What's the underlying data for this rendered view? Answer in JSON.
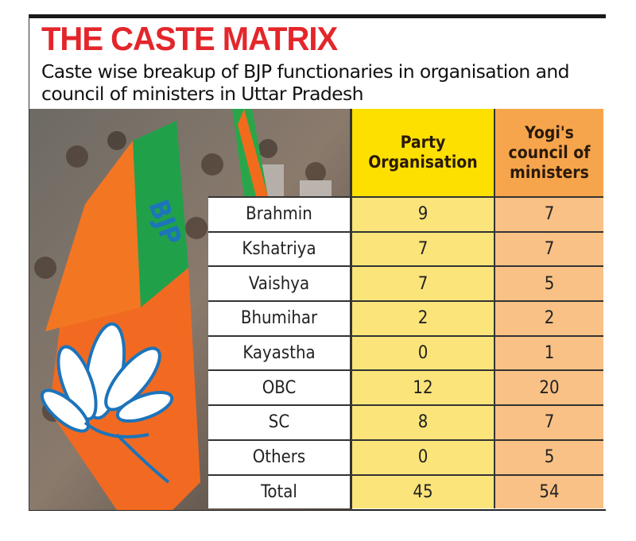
{
  "title": "THE CASTE MATRIX",
  "subtitle": "Caste wise breakup of BJP functionaries in organisation and council of ministers in Uttar Pradesh",
  "colors": {
    "title": "#e3262b",
    "party_header": "#fde000",
    "party_cells": "#fbe57a",
    "council_header": "#f7a54c",
    "council_cells": "#f9c185"
  },
  "photo": {
    "description_icon": "bjp-flag-crowd-photo",
    "flag_text": "BJP"
  },
  "chart_data": {
    "type": "table",
    "columns": [
      "Party Organisation",
      "Yogi's council of ministers"
    ],
    "rows": [
      {
        "label": "Brahmin",
        "values": [
          "9",
          "7"
        ]
      },
      {
        "label": "Kshatriya",
        "values": [
          "7",
          "7"
        ]
      },
      {
        "label": "Vaishya",
        "values": [
          "7",
          "5"
        ]
      },
      {
        "label": "Bhumihar",
        "values": [
          "2",
          "2"
        ]
      },
      {
        "label": "Kayastha",
        "values": [
          "0",
          "1"
        ]
      },
      {
        "label": "OBC",
        "values": [
          "12",
          "20"
        ]
      },
      {
        "label": "SC",
        "values": [
          "8",
          "7"
        ]
      },
      {
        "label": "Others",
        "values": [
          "0",
          "5"
        ]
      },
      {
        "label": "Total",
        "values": [
          "45",
          "54"
        ]
      }
    ]
  }
}
